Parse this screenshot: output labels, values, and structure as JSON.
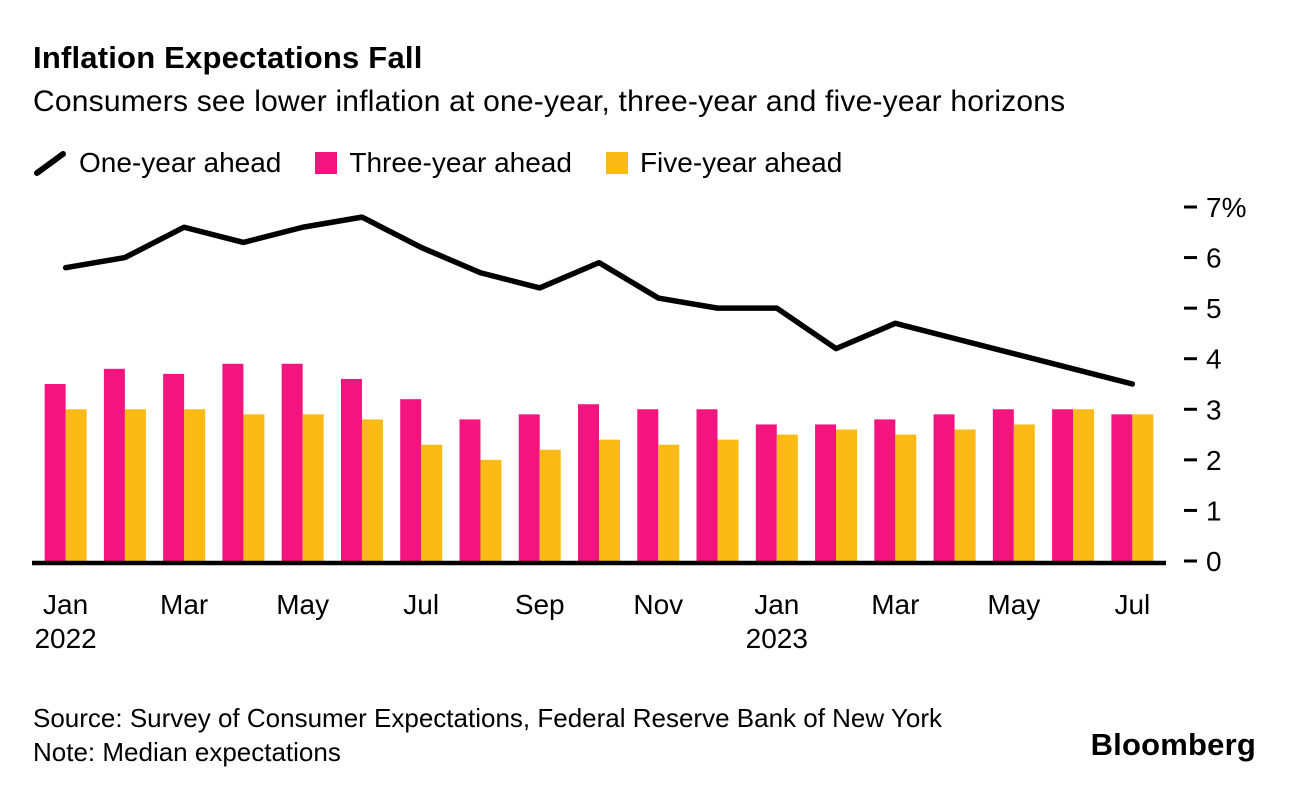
{
  "header": {
    "title": "Inflation Expectations Fall",
    "subtitle": "Consumers see lower inflation at one-year, three-year and five-year horizons"
  },
  "legend": [
    {
      "label": "One-year ahead",
      "swatch": "line",
      "color": "#000000"
    },
    {
      "label": "Three-year ahead",
      "swatch": "square",
      "color": "#F4147F"
    },
    {
      "label": "Five-year ahead",
      "swatch": "square",
      "color": "#FBBA16"
    }
  ],
  "chart_data": {
    "type": "combo-bar-line",
    "title": "Inflation Expectations Fall",
    "subtitle": "Consumers see lower inflation at one-year, three-year and five-year horizons",
    "xlabel": "",
    "ylabel": "",
    "unit": "%",
    "grid": false,
    "legend_position": "top",
    "y_axis_side": "right",
    "ylim": [
      0,
      7
    ],
    "x": [
      "Jan 2022",
      "Feb 2022",
      "Mar 2022",
      "Apr 2022",
      "May 2022",
      "Jun 2022",
      "Jul 2022",
      "Aug 2022",
      "Sep 2022",
      "Oct 2022",
      "Nov 2022",
      "Dec 2022",
      "Jan 2023",
      "Feb 2023",
      "Mar 2023",
      "Apr 2023",
      "May 2023",
      "Jun 2023",
      "Jul 2023"
    ],
    "series": [
      {
        "id": "one-year",
        "name": "One-year ahead",
        "type": "line",
        "color": "#000000",
        "values": [
          5.8,
          6.0,
          6.6,
          6.3,
          6.6,
          6.8,
          6.2,
          5.7,
          5.4,
          5.9,
          5.2,
          5.0,
          5.0,
          4.2,
          4.7,
          4.4,
          4.1,
          3.8,
          3.5
        ]
      },
      {
        "id": "three-year",
        "name": "Three-year ahead",
        "type": "bar",
        "color": "#F4147F",
        "values": [
          3.5,
          3.8,
          3.7,
          3.9,
          3.9,
          3.6,
          3.2,
          2.8,
          2.9,
          3.1,
          3.0,
          3.0,
          2.7,
          2.7,
          2.8,
          2.9,
          3.0,
          3.0,
          2.9
        ]
      },
      {
        "id": "five-year",
        "name": "Five-year ahead",
        "type": "bar",
        "color": "#FBBA16",
        "values": [
          3.0,
          3.0,
          3.0,
          2.9,
          2.9,
          2.8,
          2.3,
          2.0,
          2.2,
          2.4,
          2.3,
          2.4,
          2.5,
          2.6,
          2.5,
          2.6,
          2.7,
          3.0,
          2.9
        ]
      }
    ],
    "yticks": [
      {
        "value": 7,
        "label": "7%"
      },
      {
        "value": 6,
        "label": "6"
      },
      {
        "value": 5,
        "label": "5"
      },
      {
        "value": 4,
        "label": "4"
      },
      {
        "value": 3,
        "label": "3"
      },
      {
        "value": 2,
        "label": "2"
      },
      {
        "value": 1,
        "label": "1"
      },
      {
        "value": 0,
        "label": "0"
      }
    ],
    "xticks": [
      {
        "index": 0,
        "month": "Jan",
        "year": "2022"
      },
      {
        "index": 2,
        "month": "Mar"
      },
      {
        "index": 4,
        "month": "May"
      },
      {
        "index": 6,
        "month": "Jul"
      },
      {
        "index": 8,
        "month": "Sep"
      },
      {
        "index": 10,
        "month": "Nov"
      },
      {
        "index": 12,
        "month": "Jan",
        "year": "2023"
      },
      {
        "index": 14,
        "month": "Mar"
      },
      {
        "index": 16,
        "month": "May"
      },
      {
        "index": 18,
        "month": "Jul"
      }
    ]
  },
  "footer": {
    "source": "Source: Survey of Consumer Expectations, Federal Reserve Bank of New York",
    "note": "Note: Median expectations",
    "brand": "Bloomberg"
  }
}
